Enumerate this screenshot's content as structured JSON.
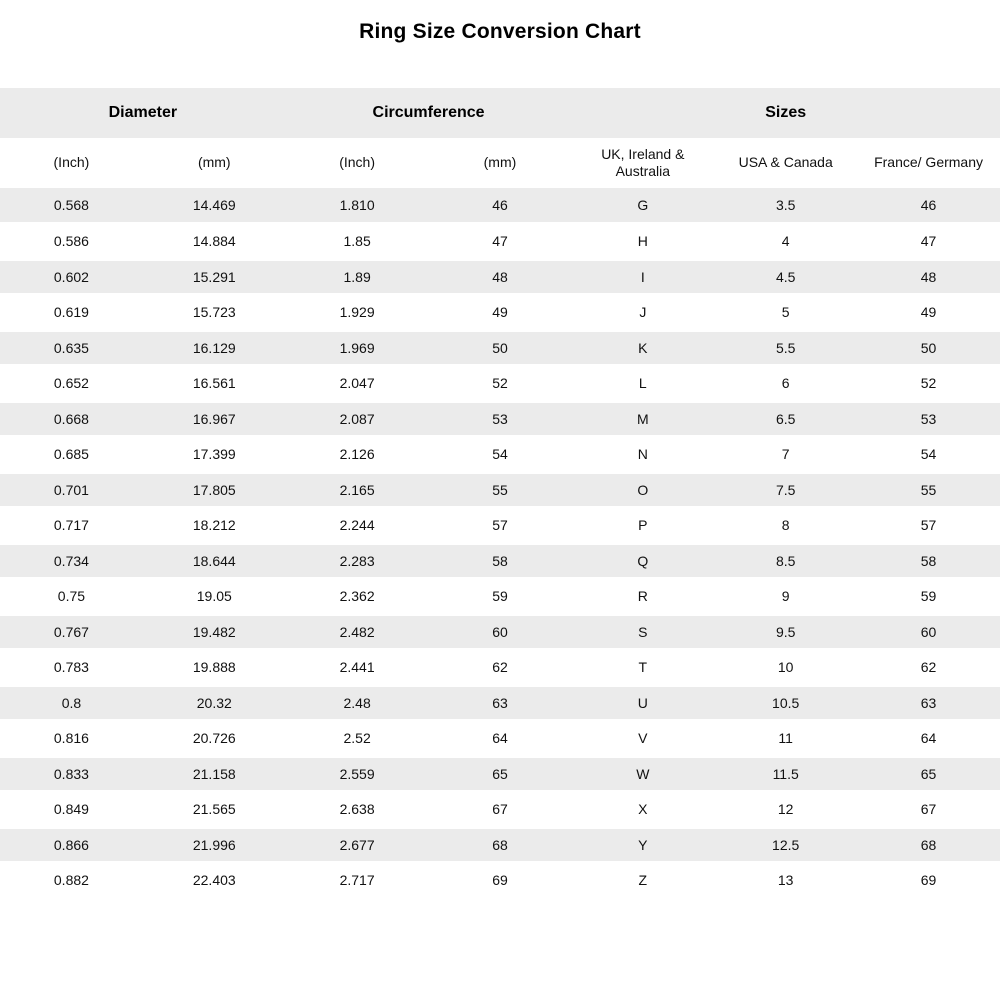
{
  "page_title": "Ring Size Conversion Chart",
  "colors": {
    "stripe": "#ebebeb",
    "background": "#ffffff",
    "text": "#111111"
  },
  "chart_data": {
    "type": "table",
    "title": "Ring Size Conversion Chart",
    "column_groups": [
      {
        "label": "Diameter",
        "span": 2
      },
      {
        "label": "Circumference",
        "span": 2
      },
      {
        "label": "Sizes",
        "span": 3
      }
    ],
    "columns": [
      "(Inch)",
      "(mm)",
      "(Inch)",
      "(mm)",
      "UK, Ireland & Australia",
      "USA & Canada",
      "France/ Germany"
    ],
    "rows": [
      [
        "0.568",
        "14.469",
        "1.810",
        "46",
        "G",
        "3.5",
        "46"
      ],
      [
        "0.586",
        "14.884",
        "1.85",
        "47",
        "H",
        "4",
        "47"
      ],
      [
        "0.602",
        "15.291",
        "1.89",
        "48",
        "I",
        "4.5",
        "48"
      ],
      [
        "0.619",
        "15.723",
        "1.929",
        "49",
        "J",
        "5",
        "49"
      ],
      [
        "0.635",
        "16.129",
        "1.969",
        "50",
        "K",
        "5.5",
        "50"
      ],
      [
        "0.652",
        "16.561",
        "2.047",
        "52",
        "L",
        "6",
        "52"
      ],
      [
        "0.668",
        "16.967",
        "2.087",
        "53",
        "M",
        "6.5",
        "53"
      ],
      [
        "0.685",
        "17.399",
        "2.126",
        "54",
        "N",
        "7",
        "54"
      ],
      [
        "0.701",
        "17.805",
        "2.165",
        "55",
        "O",
        "7.5",
        "55"
      ],
      [
        "0.717",
        "18.212",
        "2.244",
        "57",
        "P",
        "8",
        "57"
      ],
      [
        "0.734",
        "18.644",
        "2.283",
        "58",
        "Q",
        "8.5",
        "58"
      ],
      [
        "0.75",
        "19.05",
        "2.362",
        "59",
        "R",
        "9",
        "59"
      ],
      [
        "0.767",
        "19.482",
        "2.482",
        "60",
        "S",
        "9.5",
        "60"
      ],
      [
        "0.783",
        "19.888",
        "2.441",
        "62",
        "T",
        "10",
        "62"
      ],
      [
        "0.8",
        "20.32",
        "2.48",
        "63",
        "U",
        "10.5",
        "63"
      ],
      [
        "0.816",
        "20.726",
        "2.52",
        "64",
        "V",
        "11",
        "64"
      ],
      [
        "0.833",
        "21.158",
        "2.559",
        "65",
        "W",
        "11.5",
        "65"
      ],
      [
        "0.849",
        "21.565",
        "2.638",
        "67",
        "X",
        "12",
        "67"
      ],
      [
        "0.866",
        "21.996",
        "2.677",
        "68",
        "Y",
        "12.5",
        "68"
      ],
      [
        "0.882",
        "22.403",
        "2.717",
        "69",
        "Z",
        "13",
        "69"
      ]
    ],
    "layout": {
      "grid": false,
      "stripe_pattern": "odd-rows-gray",
      "columns_equal_width": true
    }
  }
}
